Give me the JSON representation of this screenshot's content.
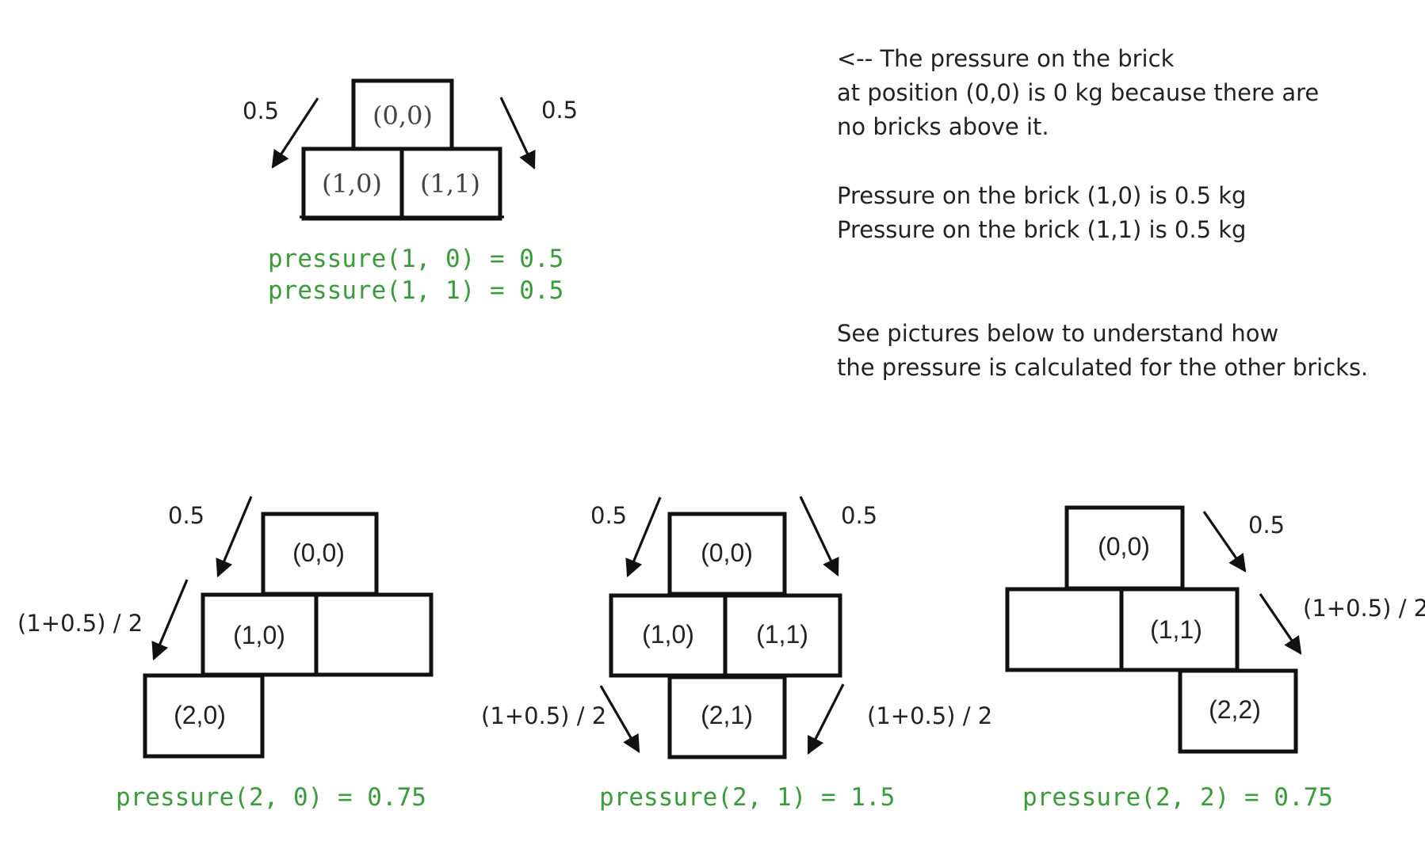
{
  "top_diagram": {
    "bricks": [
      "(0,0)",
      "(1,0)",
      "(1,1)"
    ],
    "left_weight": "0.5",
    "right_weight": "0.5",
    "formulas": [
      "pressure(1, 0) = 0.5",
      "pressure(1, 1) = 0.5"
    ]
  },
  "notes": [
    "<-- The pressure on the brick",
    "at position (0,0) is 0 kg because there are",
    "no bricks above it.",
    "Pressure on the brick (1,0) is 0.5 kg",
    "Pressure on the brick (1,1) is 0.5 kg",
    "See pictures below to understand how",
    "the pressure is calculated for the other bricks."
  ],
  "diagram_20": {
    "bricks": [
      "(0,0)",
      "(1,0)",
      "(2,0)"
    ],
    "weight_top": "0.5",
    "weight_mid": "(1+0.5) / 2",
    "formula": "pressure(2, 0) = 0.75"
  },
  "diagram_21": {
    "bricks": [
      "(0,0)",
      "(1,0)",
      "(1,1)",
      "(2,1)"
    ],
    "weight_top_left": "0.5",
    "weight_top_right": "0.5",
    "weight_bottom_left": "(1+0.5) / 2",
    "weight_bottom_right": "(1+0.5) / 2",
    "formula": "pressure(2, 1) = 1.5"
  },
  "diagram_22": {
    "bricks": [
      "(0,0)",
      "(1,1)",
      "(2,2)"
    ],
    "weight_top": "0.5",
    "weight_mid": "(1+0.5) / 2",
    "formula": "pressure(2, 2) = 0.75"
  }
}
